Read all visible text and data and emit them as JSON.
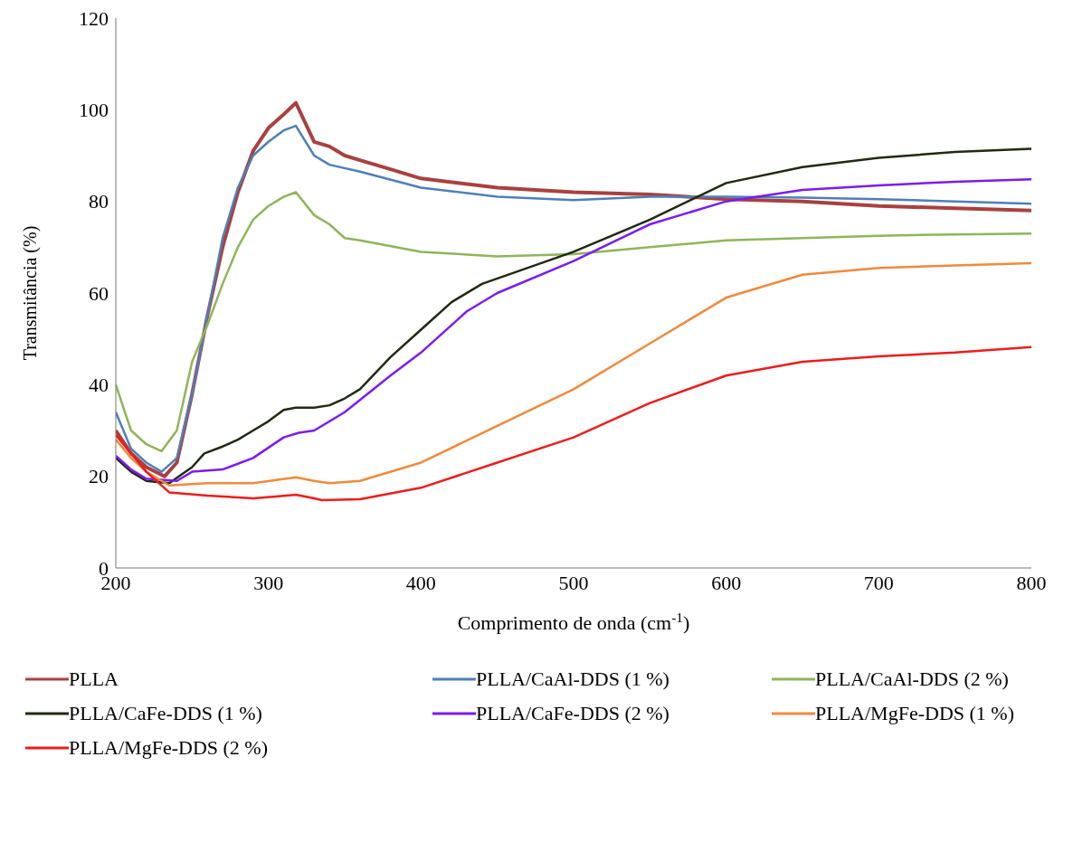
{
  "chart_data": {
    "type": "line",
    "xlabel": "Comprimento  de onda (cm$^{-1}$)",
    "ylabel": "Transmitância  (%)",
    "xlim": [
      200,
      800
    ],
    "xticks": [
      200,
      300,
      400,
      500,
      600,
      700,
      800
    ],
    "ylim": [
      0,
      120
    ],
    "yticks": [
      0,
      20,
      40,
      60,
      80,
      100,
      120
    ],
    "grid": false,
    "legend": "bottom",
    "marker": "none",
    "line_style": "solid",
    "series": [
      {
        "name": "PLLA",
        "color": "#a8413f",
        "x": [
          200,
          210,
          220,
          232,
          240,
          250,
          260,
          270,
          280,
          290,
          300,
          310,
          318,
          330,
          340,
          350,
          360,
          380,
          400,
          450,
          500,
          550,
          600,
          650,
          700,
          750,
          800
        ],
        "values": [
          30,
          25,
          22,
          20,
          23,
          38,
          55,
          70,
          82,
          91,
          96,
          99,
          101.5,
          93,
          92,
          90,
          89,
          87,
          85,
          83,
          82,
          81.5,
          80.5,
          80,
          79,
          78.5,
          78
        ]
      },
      {
        "name": "PLLA/CaAl-DDS (1 %)",
        "color": "#4f7fb8",
        "x": [
          200,
          210,
          220,
          230,
          240,
          250,
          260,
          270,
          280,
          290,
          300,
          310,
          318,
          330,
          340,
          360,
          400,
          450,
          500,
          550,
          600,
          650,
          700,
          750,
          800
        ],
        "values": [
          34,
          26,
          23,
          21,
          24,
          38,
          55,
          72,
          83,
          90,
          93,
          95.5,
          96.5,
          90,
          88,
          86.5,
          83,
          81,
          80.3,
          81,
          81,
          80.8,
          80.5,
          80,
          79.5
        ]
      },
      {
        "name": "PLLA/CaAl-DDS (2 %)",
        "color": "#8fb55a",
        "x": [
          200,
          210,
          220,
          230,
          240,
          250,
          260,
          270,
          280,
          290,
          300,
          310,
          318,
          330,
          340,
          350,
          360,
          400,
          450,
          500,
          550,
          600,
          650,
          700,
          750,
          800
        ],
        "values": [
          40,
          30,
          27,
          25.5,
          30,
          45,
          53,
          62,
          70,
          76,
          79,
          81,
          82,
          77,
          75,
          72,
          71.5,
          69,
          68,
          68.5,
          70,
          71.5,
          72,
          72.5,
          72.8,
          73
        ]
      },
      {
        "name": "PLLA/CaFe-DDS (1 %)",
        "color": "#1f2a10",
        "x": [
          200,
          210,
          220,
          235,
          250,
          258,
          270,
          280,
          290,
          300,
          310,
          318,
          330,
          340,
          350,
          360,
          380,
          400,
          420,
          440,
          470,
          500,
          550,
          600,
          650,
          700,
          750,
          800
        ],
        "values": [
          24,
          21,
          19,
          18.5,
          22,
          25,
          26.5,
          28,
          30,
          32,
          34.5,
          35,
          35,
          35.5,
          37,
          39,
          46,
          52,
          58,
          62,
          65.5,
          69,
          76,
          84,
          87.5,
          89.5,
          90.8,
          91.5
        ]
      },
      {
        "name": "PLLA/CaFe-DDS (2 %)",
        "color": "#7a1cf0",
        "x": [
          200,
          210,
          220,
          240,
          250,
          270,
          290,
          310,
          320,
          330,
          350,
          380,
          400,
          430,
          450,
          500,
          550,
          600,
          650,
          700,
          750,
          800
        ],
        "values": [
          24.5,
          21.5,
          19.5,
          19,
          21,
          21.5,
          24,
          28.5,
          29.5,
          30,
          34,
          42,
          47,
          56,
          60,
          67,
          75,
          80,
          82.5,
          83.5,
          84.3,
          84.8
        ]
      },
      {
        "name": "PLLA/MgFe-DDS (1 %)",
        "color": "#f08a3c",
        "x": [
          200,
          210,
          220,
          235,
          260,
          290,
          305,
          318,
          330,
          340,
          360,
          400,
          450,
          500,
          550,
          600,
          650,
          700,
          750,
          800
        ],
        "values": [
          28,
          24,
          21,
          18,
          18.5,
          18.5,
          19.2,
          19.8,
          19,
          18.5,
          19,
          23,
          31,
          39,
          49,
          59,
          64,
          65.5,
          66,
          66.5
        ]
      },
      {
        "name": "PLLA/MgFe-DDS (2 %)",
        "color": "#ee1c1c",
        "x": [
          200,
          210,
          220,
          235,
          260,
          290,
          305,
          318,
          330,
          335,
          360,
          400,
          450,
          500,
          550,
          600,
          650,
          700,
          750,
          800
        ],
        "values": [
          29,
          25,
          21,
          16.5,
          15.8,
          15.2,
          15.6,
          16,
          15.2,
          14.8,
          15,
          17.5,
          23,
          28.5,
          36,
          42,
          45,
          46.2,
          47,
          48.2
        ]
      }
    ]
  }
}
